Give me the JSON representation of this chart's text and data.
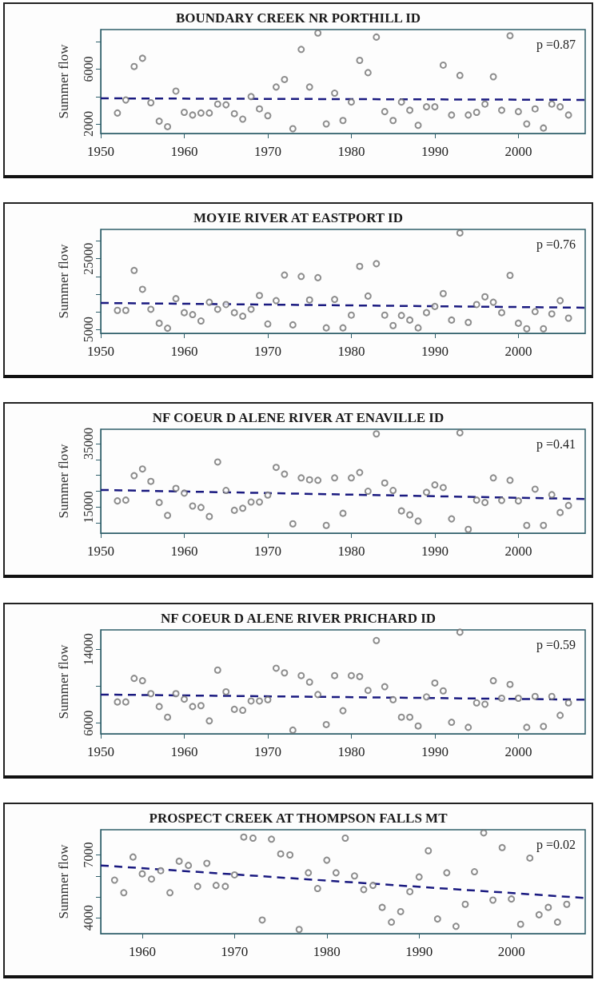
{
  "chart_data": [
    {
      "type": "scatter",
      "title": "BOUNDARY CREEK NR PORTHILL ID",
      "ylabel": "Summer flow",
      "annotations": [
        "p =0.87"
      ],
      "x": [
        1952,
        1953,
        1954,
        1955,
        1956,
        1957,
        1958,
        1959,
        1960,
        1961,
        1962,
        1963,
        1964,
        1965,
        1966,
        1967,
        1968,
        1969,
        1970,
        1971,
        1972,
        1973,
        1974,
        1975,
        1976,
        1977,
        1978,
        1979,
        1980,
        1981,
        1982,
        1983,
        1984,
        1985,
        1986,
        1987,
        1988,
        1989,
        1990,
        1991,
        1992,
        1993,
        1994,
        1995,
        1996,
        1997,
        1998,
        1999,
        2000,
        2001,
        2002,
        2003,
        2004,
        2005,
        2006
      ],
      "series": [
        {
          "type": "scatter",
          "marker": "circle",
          "color": "#707070",
          "values": [
            2800,
            3750,
            6200,
            6800,
            3550,
            2200,
            1800,
            4400,
            2850,
            2650,
            2800,
            2800,
            3450,
            3400,
            2750,
            2350,
            4000,
            3100,
            2600,
            4700,
            5250,
            1650,
            7450,
            4700,
            8650,
            2000,
            4250,
            2250,
            3600,
            6650,
            5750,
            8350,
            2900,
            2250,
            3600,
            3000,
            1900,
            3250,
            3250,
            6300,
            2650,
            5550,
            2650,
            2850,
            3450,
            5450,
            3000,
            8450,
            2900,
            2000,
            3100,
            1700,
            3450,
            3250,
            2650
          ]
        },
        {
          "type": "line",
          "marker": "none",
          "line_style": "dashed",
          "color": "#1a1a80",
          "x": [
            1950,
            2008
          ],
          "values": [
            3870,
            3760
          ]
        }
      ],
      "xlim": [
        1950,
        2008
      ],
      "xticks": [
        1950,
        1960,
        1970,
        1980,
        1990,
        2000
      ],
      "ylim": [
        1300,
        8900
      ],
      "yticks": [
        2000,
        {
          "value": 4000,
          "label": null
        },
        6000,
        {
          "value": 8000,
          "label": null
        }
      ]
    },
    {
      "type": "scatter",
      "title": "MOYIE RIVER AT EASTPORT ID",
      "ylabel": "Summer flow",
      "annotations": [
        "p =0.76"
      ],
      "x": [
        1952,
        1953,
        1954,
        1955,
        1956,
        1957,
        1958,
        1959,
        1960,
        1961,
        1962,
        1963,
        1964,
        1965,
        1966,
        1967,
        1968,
        1969,
        1970,
        1971,
        1972,
        1973,
        1974,
        1975,
        1976,
        1977,
        1978,
        1979,
        1980,
        1981,
        1982,
        1983,
        1984,
        1985,
        1986,
        1987,
        1988,
        1989,
        1990,
        1991,
        1992,
        1993,
        1994,
        1995,
        1996,
        1997,
        1998,
        1999,
        2000,
        2001,
        2002,
        2003,
        2004,
        2005,
        2006
      ],
      "series": [
        {
          "type": "scatter",
          "marker": "circle",
          "color": "#707070",
          "values": [
            10400,
            10400,
            21700,
            16350,
            10700,
            6750,
            5350,
            13700,
            9750,
            9200,
            7400,
            12700,
            10700,
            12050,
            9750,
            8750,
            10700,
            14600,
            6550,
            13150,
            20400,
            6300,
            20000,
            13350,
            19650,
            5450,
            13500,
            5450,
            9050,
            22850,
            14450,
            23600,
            9050,
            6100,
            8950,
            7650,
            5450,
            9750,
            11500,
            15150,
            7650,
            32300,
            7000,
            12050,
            14250,
            12700,
            9750,
            20300,
            6750,
            5200,
            10050,
            5200,
            9400,
            13150,
            8200
          ]
        },
        {
          "type": "line",
          "marker": "none",
          "line_style": "dashed",
          "color": "#1a1a80",
          "x": [
            1950,
            2008
          ],
          "values": [
            12500,
            11150
          ]
        }
      ],
      "xlim": [
        1950,
        2008
      ],
      "xticks": [
        1950,
        1960,
        1970,
        1980,
        1990,
        2000
      ],
      "ylim": [
        3900,
        33300
      ],
      "yticks": [
        5000,
        {
          "value": 10000,
          "label": null
        },
        {
          "value": 15000,
          "label": null
        },
        {
          "value": 20000,
          "label": null
        },
        25000,
        {
          "value": 30000,
          "label": null
        }
      ]
    },
    {
      "type": "scatter",
      "title": "NF COEUR D ALENE RIVER AT ENAVILLE ID",
      "ylabel": "Summer flow",
      "annotations": [
        "p =0.41"
      ],
      "x": [
        1952,
        1953,
        1954,
        1955,
        1956,
        1957,
        1958,
        1959,
        1960,
        1961,
        1962,
        1963,
        1964,
        1965,
        1966,
        1967,
        1968,
        1969,
        1970,
        1971,
        1972,
        1973,
        1974,
        1975,
        1976,
        1977,
        1978,
        1979,
        1980,
        1981,
        1982,
        1983,
        1984,
        1985,
        1986,
        1987,
        1988,
        1989,
        1990,
        1991,
        1992,
        1993,
        1994,
        1995,
        1996,
        1997,
        1998,
        1999,
        2000,
        2001,
        2002,
        2003,
        2004,
        2005,
        2006
      ],
      "series": [
        {
          "type": "scatter",
          "marker": "circle",
          "color": "#707070",
          "values": [
            16950,
            17200,
            24900,
            27000,
            23100,
            16450,
            12400,
            20900,
            19400,
            15350,
            14900,
            12050,
            29200,
            20250,
            14000,
            14650,
            16600,
            16600,
            18800,
            27500,
            25400,
            9750,
            24200,
            23600,
            23450,
            9250,
            24200,
            13050,
            24200,
            25900,
            20000,
            38050,
            22600,
            20250,
            13800,
            12550,
            10600,
            19650,
            22000,
            21150,
            11300,
            38400,
            8000,
            17200,
            16450,
            24200,
            17100,
            23450,
            16950,
            9250,
            20650,
            9250,
            18900,
            13300,
            15500
          ]
        },
        {
          "type": "line",
          "marker": "none",
          "line_style": "dashed",
          "color": "#1a1a80",
          "x": [
            1950,
            2008
          ],
          "values": [
            20400,
            17550
          ]
        }
      ],
      "xlim": [
        1950,
        2008
      ],
      "xticks": [
        1950,
        1960,
        1970,
        1980,
        1990,
        2000
      ],
      "ylim": [
        6800,
        39500
      ],
      "yticks": [
        {
          "value": 10000,
          "label": null
        },
        15000,
        {
          "value": 20000,
          "label": null
        },
        {
          "value": 25000,
          "label": null
        },
        {
          "value": 30000,
          "label": null
        },
        35000
      ]
    },
    {
      "type": "scatter",
      "title": "NF COEUR D ALENE RIVER PRICHARD ID",
      "ylabel": "Summer flow",
      "annotations": [
        "p =0.59"
      ],
      "x": [
        1952,
        1953,
        1954,
        1955,
        1956,
        1957,
        1958,
        1959,
        1960,
        1961,
        1962,
        1963,
        1964,
        1965,
        1966,
        1967,
        1968,
        1969,
        1970,
        1971,
        1972,
        1973,
        1974,
        1975,
        1976,
        1977,
        1978,
        1979,
        1980,
        1981,
        1982,
        1983,
        1984,
        1985,
        1986,
        1987,
        1988,
        1989,
        1990,
        1991,
        1992,
        1993,
        1994,
        1995,
        1996,
        1997,
        1998,
        1999,
        2000,
        2001,
        2002,
        2003,
        2004,
        2005,
        2006
      ],
      "series": [
        {
          "type": "scatter",
          "marker": "circle",
          "color": "#707070",
          "values": [
            8300,
            8300,
            10850,
            10600,
            9200,
            7800,
            6650,
            9200,
            8600,
            7800,
            7900,
            6250,
            11750,
            9400,
            7500,
            7400,
            8400,
            8400,
            8550,
            11950,
            11450,
            5250,
            11150,
            10450,
            9100,
            5850,
            11150,
            7350,
            11150,
            11050,
            9550,
            14950,
            9950,
            8550,
            6650,
            6650,
            5700,
            8850,
            10350,
            9500,
            6100,
            15850,
            5550,
            8200,
            8050,
            10600,
            8700,
            10200,
            8700,
            5550,
            8900,
            5650,
            8900,
            6850,
            8200
          ]
        },
        {
          "type": "line",
          "marker": "none",
          "line_style": "dashed",
          "color": "#1a1a80",
          "x": [
            1950,
            2008
          ],
          "values": [
            9100,
            8550
          ]
        }
      ],
      "xlim": [
        1950,
        2008
      ],
      "xticks": [
        1950,
        1960,
        1970,
        1980,
        1990,
        2000
      ],
      "ylim": [
        4850,
        16100
      ],
      "yticks": [
        6000,
        {
          "value": 10000,
          "label": null
        },
        14000
      ]
    },
    {
      "type": "scatter",
      "title": "PROSPECT CREEK AT THOMPSON FALLS MT",
      "ylabel": "Summer flow",
      "annotations": [
        "p =0.02"
      ],
      "x": [
        1957,
        1958,
        1959,
        1960,
        1961,
        1962,
        1963,
        1964,
        1965,
        1966,
        1967,
        1968,
        1969,
        1970,
        1971,
        1972,
        1973,
        1974,
        1975,
        1976,
        1977,
        1978,
        1979,
        1980,
        1981,
        1982,
        1983,
        1984,
        1985,
        1986,
        1987,
        1988,
        1989,
        1990,
        1991,
        1992,
        1993,
        1994,
        1995,
        1996,
        1997,
        1998,
        1999,
        2000,
        2001,
        2002,
        2003,
        2004,
        2005,
        2006
      ],
      "series": [
        {
          "type": "scatter",
          "marker": "circle",
          "color": "#707070",
          "values": [
            5800,
            5200,
            6900,
            6100,
            5850,
            6250,
            5200,
            6700,
            6500,
            5500,
            6600,
            5550,
            5500,
            6050,
            7850,
            7800,
            3900,
            7750,
            7050,
            7000,
            3450,
            6150,
            5400,
            6750,
            6150,
            7800,
            6000,
            5350,
            5550,
            4500,
            3800,
            4300,
            5250,
            5950,
            7200,
            3950,
            6150,
            3600,
            4650,
            6200,
            8050,
            4850,
            7350,
            4900,
            3700,
            6850,
            4150,
            4500,
            3800,
            4650
          ]
        },
        {
          "type": "line",
          "marker": "none",
          "line_style": "dashed",
          "color": "#1a1a80",
          "x": [
            1955.5,
            2008
          ],
          "values": [
            6500,
            4950
          ]
        }
      ],
      "xlim": [
        1955.5,
        2008
      ],
      "xticks": [
        1960,
        1970,
        1980,
        1990,
        2000
      ],
      "ylim": [
        3250,
        8200
      ],
      "yticks": [
        4000,
        {
          "value": 5000,
          "label": null
        },
        {
          "value": 6000,
          "label": null
        },
        7000
      ]
    }
  ]
}
